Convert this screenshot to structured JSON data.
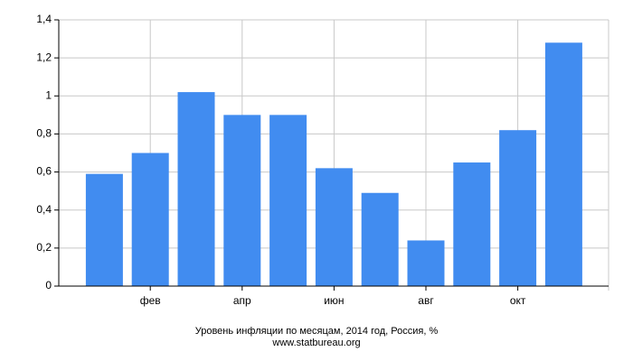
{
  "chart_data": {
    "type": "bar",
    "title": "Уровень инфляции по месяцам, 2014 год, Россия, %",
    "subtitle": "www.statbureau.org",
    "categories": [
      null,
      "фев",
      null,
      "апр",
      null,
      "июн",
      null,
      "авг",
      null,
      "окт",
      null
    ],
    "values": [
      0.59,
      0.7,
      1.02,
      0.9,
      0.9,
      0.62,
      0.49,
      0.24,
      0.65,
      0.82,
      1.28
    ],
    "color": "#418cf0",
    "ylim": [
      0,
      1.4
    ],
    "yticks": [
      0,
      {
        "value": 0.2,
        "label": "0,2"
      },
      {
        "value": 0.4,
        "label": "0,4"
      },
      {
        "value": 0.6,
        "label": "0,6"
      },
      {
        "value": 0.8,
        "label": "0,8"
      },
      1,
      {
        "value": 1.2,
        "label": "1,2"
      },
      {
        "value": 1.4,
        "label": "1,4"
      }
    ],
    "grid": true
  }
}
